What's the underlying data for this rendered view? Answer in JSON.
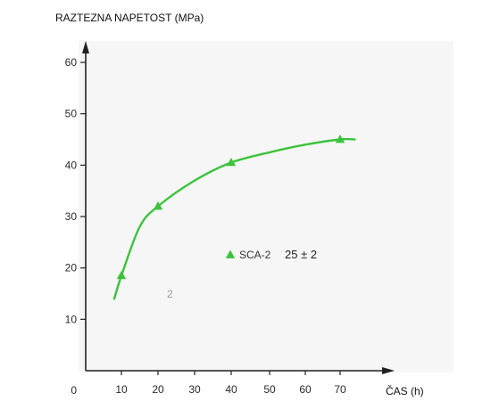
{
  "chart_data": {
    "type": "line",
    "ylabel": "RAZTEZNA NAPETOST (MPa)",
    "xlabel": "ČAS (h)",
    "ylim": [
      0,
      60
    ],
    "y_ticks": [
      "10",
      "20",
      "30",
      "40",
      "50",
      "60"
    ],
    "y_origin_label": "0",
    "x_tick_labels": [
      "10",
      "20",
      "30",
      "40",
      "50",
      "60",
      "70"
    ],
    "grid": false,
    "legend_position": "center-right",
    "annotations": [
      "2"
    ],
    "series": [
      {
        "name": "SCA-2",
        "condition": "25 ± 2",
        "color": "#3cc33c",
        "curve": [
          [
            8,
            14
          ],
          [
            10,
            18.5
          ],
          [
            15,
            28
          ],
          [
            20,
            32
          ],
          [
            30,
            37
          ],
          [
            40,
            40.5
          ],
          [
            50,
            42.5
          ],
          [
            60,
            44
          ],
          [
            70,
            45
          ],
          [
            74,
            45
          ]
        ],
        "markers": [
          [
            10,
            18.5
          ],
          [
            20,
            32
          ],
          [
            40,
            40.5
          ],
          [
            70,
            45
          ]
        ]
      }
    ]
  }
}
